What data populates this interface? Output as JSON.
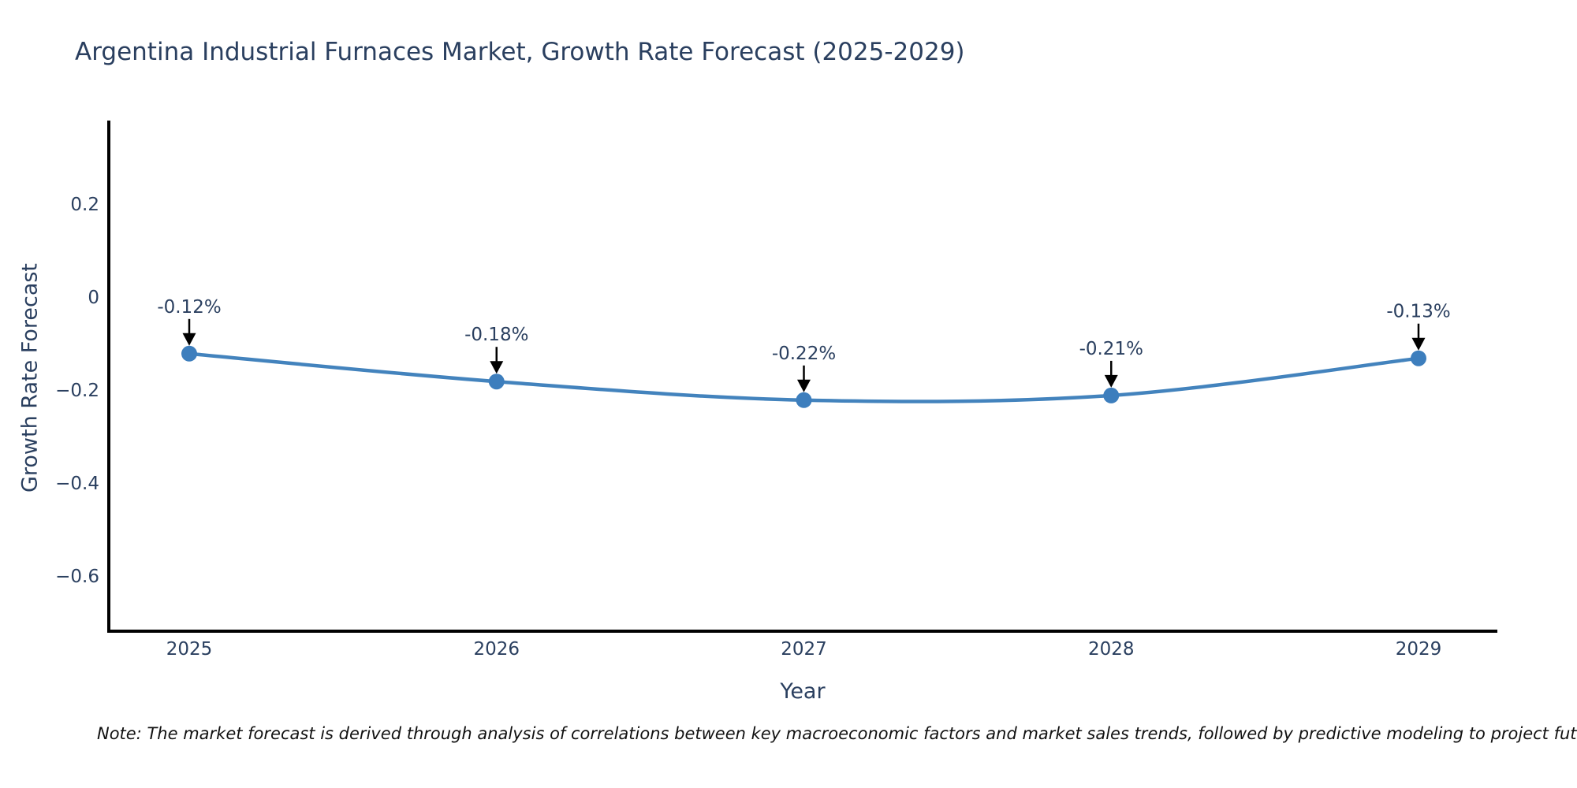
{
  "page": {
    "note": "Note: The market forecast is derived through analysis of correlations between key macroeconomic factors and market sales trends, followed by predictive modeling to project future sal"
  },
  "colors": {
    "background": "#ffffff",
    "line": "#4383bd",
    "marker": "#3d7ebd",
    "axis": "#000000",
    "chart_text": "#2a3f5f",
    "annotation_arrow": "#000000",
    "note_text": "#111111"
  },
  "chart_data": {
    "type": "line",
    "title": "Argentina Industrial Furnaces Market, Growth Rate Forecast (2025-2029)",
    "xlabel": "Year",
    "ylabel": "Growth Rate Forecast",
    "x": [
      2025,
      2026,
      2027,
      2028,
      2029
    ],
    "x_tick_labels": [
      "2025",
      "2026",
      "2027",
      "2028",
      "2029"
    ],
    "values": [
      -0.12,
      -0.18,
      -0.22,
      -0.21,
      -0.13
    ],
    "point_labels": [
      "-0.12%",
      "-0.18%",
      "-0.22%",
      "-0.21%",
      "-0.13%"
    ],
    "yticks": [
      0.2,
      0,
      -0.2,
      -0.4,
      -0.6
    ],
    "ytick_labels": [
      "0.2",
      "0",
      "−0.2",
      "−0.4",
      "−0.6"
    ],
    "ylim": [
      -0.717,
      0.381
    ],
    "line_shape": "spline",
    "grid": false,
    "legend": "none",
    "annotations_have_arrows": true
  }
}
